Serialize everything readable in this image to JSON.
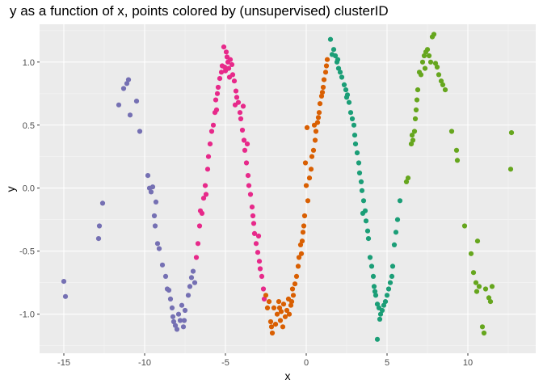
{
  "chart_data": {
    "type": "scatter",
    "title": "y as a function of x, points colored by (unsupervised) clusterID",
    "xlabel": "x",
    "ylabel": "y",
    "xlim": [
      -16.5,
      14.2
    ],
    "ylim": [
      -1.31,
      1.3
    ],
    "x_ticks": [
      -15,
      -10,
      -5,
      0,
      5,
      10
    ],
    "y_ticks": [
      -1.0,
      -0.5,
      0.0,
      0.5,
      1.0
    ],
    "x_tick_labels": [
      "-15",
      "-10",
      "-5",
      "0",
      "5",
      "10"
    ],
    "y_tick_labels": [
      "-1.0",
      "-0.5",
      "0.0",
      "0.5",
      "1.0"
    ],
    "grid": true,
    "legend": "none",
    "series": [
      {
        "color": "#7570b3",
        "points": [
          [
            -15.0,
            -0.74
          ],
          [
            -14.9,
            -0.86
          ],
          [
            -12.8,
            -0.3
          ],
          [
            -12.85,
            -0.4
          ],
          [
            -12.6,
            -0.12
          ],
          [
            -11.6,
            0.66
          ],
          [
            -11.3,
            0.79
          ],
          [
            -11.1,
            0.83
          ],
          [
            -11.0,
            0.86
          ],
          [
            -10.9,
            0.58
          ],
          [
            -10.5,
            0.69
          ],
          [
            -10.3,
            0.45
          ],
          [
            -9.8,
            0.1
          ],
          [
            -9.6,
            -0.03
          ],
          [
            -9.7,
            0.0
          ],
          [
            -9.5,
            0.01
          ],
          [
            -9.3,
            -0.11
          ],
          [
            -9.4,
            -0.22
          ],
          [
            -9.35,
            -0.3
          ],
          [
            -9.2,
            -0.44
          ],
          [
            -9.1,
            -0.48
          ],
          [
            -8.9,
            -0.61
          ],
          [
            -8.7,
            -0.7
          ],
          [
            -8.6,
            -0.8
          ],
          [
            -8.5,
            -0.81
          ],
          [
            -8.4,
            -0.88
          ],
          [
            -8.3,
            -0.95
          ],
          [
            -8.25,
            -1.02
          ],
          [
            -8.2,
            -1.06
          ],
          [
            -8.1,
            -1.09
          ],
          [
            -8.0,
            -1.12
          ],
          [
            -7.9,
            -1.0
          ],
          [
            -7.8,
            -1.05
          ],
          [
            -7.7,
            -0.93
          ],
          [
            -7.6,
            -1.1
          ],
          [
            -7.55,
            -1.05
          ],
          [
            -7.5,
            -0.97
          ],
          [
            -7.3,
            -0.85
          ],
          [
            -7.2,
            -0.78
          ],
          [
            -7.1,
            -0.71
          ],
          [
            -7.0,
            -0.66
          ],
          [
            -6.9,
            -0.75
          ]
        ]
      },
      {
        "color": "#e7298a",
        "points": [
          [
            -6.8,
            -0.55
          ],
          [
            -6.7,
            -0.44
          ],
          [
            -6.6,
            -0.3
          ],
          [
            -6.55,
            -0.18
          ],
          [
            -6.45,
            -0.2
          ],
          [
            -6.35,
            -0.08
          ],
          [
            -6.25,
            0.02
          ],
          [
            -6.1,
            0.15
          ],
          [
            -6.05,
            0.25
          ],
          [
            -5.95,
            0.35
          ],
          [
            -5.85,
            0.45
          ],
          [
            -5.75,
            0.5
          ],
          [
            -5.65,
            0.6
          ],
          [
            -5.6,
            0.7
          ],
          [
            -5.5,
            0.75
          ],
          [
            -5.45,
            0.8
          ],
          [
            -5.35,
            0.87
          ],
          [
            -5.25,
            0.92
          ],
          [
            -5.2,
            0.97
          ],
          [
            -5.1,
            1.12
          ],
          [
            -5.0,
            0.93
          ],
          [
            -4.95,
            1.08
          ],
          [
            -4.85,
            1.0
          ],
          [
            -4.8,
            0.95
          ],
          [
            -4.7,
            1.02
          ],
          [
            -4.6,
            0.98
          ],
          [
            -4.55,
            0.9
          ],
          [
            -4.45,
            0.85
          ],
          [
            -4.35,
            0.77
          ],
          [
            -4.3,
            0.72
          ],
          [
            -4.2,
            0.68
          ],
          [
            -4.1,
            0.6
          ],
          [
            -4.05,
            0.55
          ],
          [
            -3.95,
            0.46
          ],
          [
            -3.85,
            0.38
          ],
          [
            -3.8,
            0.3
          ],
          [
            -3.7,
            0.2
          ],
          [
            -3.6,
            0.1
          ],
          [
            -3.55,
            0.02
          ],
          [
            -3.45,
            -0.05
          ],
          [
            -3.35,
            -0.15
          ],
          [
            -3.3,
            -0.22
          ],
          [
            -3.2,
            -0.36
          ],
          [
            -3.1,
            -0.44
          ],
          [
            -3.0,
            -0.51
          ],
          [
            -2.9,
            -0.58
          ],
          [
            -2.85,
            -0.64
          ],
          [
            -2.75,
            -0.7
          ],
          [
            -2.65,
            -0.8
          ],
          [
            -2.6,
            -0.88
          ],
          [
            -3.9,
            0.65
          ],
          [
            -4.75,
            0.88
          ],
          [
            -5.55,
            0.62
          ],
          [
            -6.2,
            -0.05
          ],
          [
            -4.4,
            0.66
          ],
          [
            -3.65,
            0.35
          ],
          [
            -2.95,
            -0.38
          ],
          [
            -5.05,
            0.96
          ],
          [
            -4.9,
            1.04
          ],
          [
            -3.25,
            -0.28
          ]
        ]
      },
      {
        "color": "#d95f02",
        "points": [
          [
            -2.5,
            -0.85
          ],
          [
            -2.4,
            -0.95
          ],
          [
            -2.3,
            -0.9
          ],
          [
            -2.2,
            -1.06
          ],
          [
            -2.1,
            -1.15
          ],
          [
            -2.0,
            -0.95
          ],
          [
            -1.9,
            -1.08
          ],
          [
            -1.8,
            -1.0
          ],
          [
            -1.7,
            -0.9
          ],
          [
            -1.6,
            -1.05
          ],
          [
            -1.55,
            -0.98
          ],
          [
            -1.45,
            -1.1
          ],
          [
            -1.4,
            -0.92
          ],
          [
            -1.3,
            -1.02
          ],
          [
            -1.2,
            -0.97
          ],
          [
            -1.1,
            -0.88
          ],
          [
            -1.05,
            -1.0
          ],
          [
            -0.95,
            -0.93
          ],
          [
            -0.85,
            -0.8
          ],
          [
            -0.8,
            -0.85
          ],
          [
            -0.7,
            -0.76
          ],
          [
            -0.6,
            -0.7
          ],
          [
            -0.5,
            -0.62
          ],
          [
            -0.45,
            -0.55
          ],
          [
            -0.35,
            -0.45
          ],
          [
            -0.3,
            -0.52
          ],
          [
            -0.2,
            -0.35
          ],
          [
            -0.15,
            -0.3
          ],
          [
            -0.1,
            -0.22
          ],
          [
            -0.05,
            0.2
          ],
          [
            0.0,
            0.02
          ],
          [
            0.05,
            0.48
          ],
          [
            0.1,
            -0.1
          ],
          [
            0.2,
            0.08
          ],
          [
            0.3,
            0.15
          ],
          [
            0.35,
            0.25
          ],
          [
            0.45,
            0.3
          ],
          [
            0.55,
            0.38
          ],
          [
            0.6,
            0.45
          ],
          [
            0.7,
            0.52
          ],
          [
            0.8,
            0.6
          ],
          [
            0.85,
            0.67
          ],
          [
            0.95,
            0.73
          ],
          [
            1.05,
            0.8
          ],
          [
            1.1,
            0.86
          ],
          [
            1.2,
            0.92
          ],
          [
            1.25,
            0.97
          ],
          [
            1.3,
            1.02
          ],
          [
            -0.25,
            -0.42
          ],
          [
            0.5,
            0.5
          ],
          [
            -1.65,
            -0.95
          ],
          [
            -2.15,
            -1.1
          ],
          [
            -0.9,
            -0.9
          ],
          [
            0.75,
            0.56
          ],
          [
            1.0,
            0.76
          ]
        ]
      },
      {
        "color": "#1b9e77",
        "points": [
          [
            1.5,
            1.18
          ],
          [
            1.6,
            1.06
          ],
          [
            1.7,
            1.1
          ],
          [
            1.8,
            1.05
          ],
          [
            1.9,
            1.0
          ],
          [
            2.0,
            0.95
          ],
          [
            2.1,
            0.92
          ],
          [
            2.2,
            0.88
          ],
          [
            2.35,
            0.82
          ],
          [
            2.45,
            0.78
          ],
          [
            2.55,
            0.74
          ],
          [
            2.65,
            0.68
          ],
          [
            2.75,
            0.6
          ],
          [
            2.85,
            0.55
          ],
          [
            2.95,
            0.5
          ],
          [
            3.05,
            0.35
          ],
          [
            3.15,
            0.28
          ],
          [
            3.25,
            0.2
          ],
          [
            3.3,
            0.12
          ],
          [
            3.4,
            0.05
          ],
          [
            3.45,
            -0.02
          ],
          [
            3.55,
            -0.1
          ],
          [
            3.65,
            -0.18
          ],
          [
            3.7,
            -0.26
          ],
          [
            3.8,
            -0.34
          ],
          [
            3.85,
            -0.4
          ],
          [
            3.95,
            -0.55
          ],
          [
            4.05,
            -0.62
          ],
          [
            4.15,
            -0.7
          ],
          [
            4.2,
            -0.78
          ],
          [
            4.3,
            -0.85
          ],
          [
            4.4,
            -0.92
          ],
          [
            4.5,
            -0.95
          ],
          [
            4.6,
            -1.0
          ],
          [
            4.7,
            -0.97
          ],
          [
            4.8,
            -0.93
          ],
          [
            4.9,
            -0.9
          ],
          [
            5.0,
            -0.85
          ],
          [
            5.1,
            -0.8
          ],
          [
            5.2,
            -0.75
          ],
          [
            5.3,
            -0.7
          ],
          [
            5.45,
            -0.45
          ],
          [
            5.55,
            -0.35
          ],
          [
            5.65,
            -0.25
          ],
          [
            5.8,
            -0.1
          ],
          [
            4.4,
            -1.2
          ],
          [
            4.55,
            -1.04
          ],
          [
            3.5,
            -0.2
          ],
          [
            2.5,
            0.72
          ],
          [
            1.95,
            1.02
          ],
          [
            4.25,
            -0.82
          ],
          [
            5.35,
            -0.62
          ],
          [
            3.0,
            0.42
          ]
        ]
      },
      {
        "color": "#66a61e",
        "points": [
          [
            6.2,
            0.05
          ],
          [
            6.3,
            0.08
          ],
          [
            6.5,
            0.35
          ],
          [
            6.6,
            0.38
          ],
          [
            6.7,
            0.45
          ],
          [
            6.75,
            0.55
          ],
          [
            6.8,
            0.62
          ],
          [
            6.85,
            0.7
          ],
          [
            6.9,
            0.78
          ],
          [
            7.0,
            0.92
          ],
          [
            7.1,
            0.9
          ],
          [
            7.2,
            1.0
          ],
          [
            7.3,
            1.05
          ],
          [
            7.4,
            1.08
          ],
          [
            7.5,
            1.1
          ],
          [
            7.6,
            1.05
          ],
          [
            7.7,
            1.0
          ],
          [
            7.8,
            1.2
          ],
          [
            7.9,
            1.22
          ],
          [
            8.0,
            0.99
          ],
          [
            8.1,
            0.96
          ],
          [
            8.2,
            0.9
          ],
          [
            8.35,
            0.85
          ],
          [
            8.45,
            0.82
          ],
          [
            8.6,
            0.78
          ],
          [
            9.0,
            0.45
          ],
          [
            9.3,
            0.3
          ],
          [
            9.35,
            0.22
          ],
          [
            9.8,
            -0.3
          ],
          [
            10.2,
            -0.52
          ],
          [
            10.35,
            -0.67
          ],
          [
            10.5,
            -0.75
          ],
          [
            10.55,
            -0.82
          ],
          [
            10.7,
            -0.78
          ],
          [
            10.9,
            -1.1
          ],
          [
            11.0,
            -1.15
          ],
          [
            11.1,
            -0.8
          ],
          [
            11.3,
            -0.87
          ],
          [
            11.4,
            -0.9
          ],
          [
            11.5,
            -0.78
          ],
          [
            12.7,
            0.44
          ],
          [
            12.65,
            0.15
          ],
          [
            10.6,
            -0.42
          ],
          [
            6.55,
            0.42
          ],
          [
            7.35,
            0.95
          ]
        ]
      }
    ]
  }
}
